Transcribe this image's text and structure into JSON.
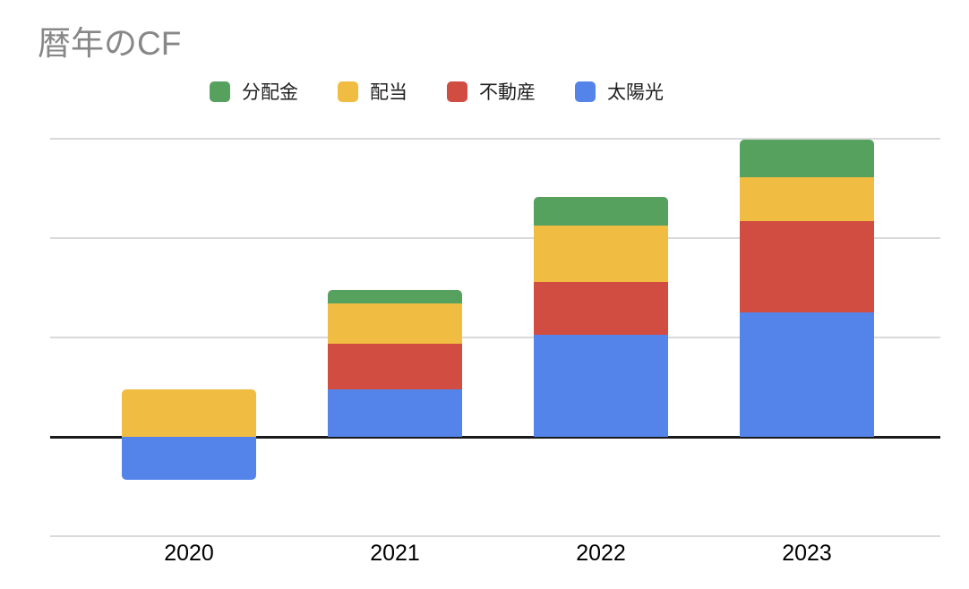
{
  "title": "暦年のCF",
  "legend": {
    "items": [
      {
        "label": "分配金",
        "color": "#57A15F"
      },
      {
        "label": "配当",
        "color": "#F0BC42"
      },
      {
        "label": "不動産",
        "color": "#D14D41"
      },
      {
        "label": "太陽光",
        "color": "#5484EA"
      }
    ]
  },
  "chart_data": {
    "type": "bar",
    "stacked": true,
    "title": "暦年のCF",
    "categories": [
      "2020",
      "2021",
      "2022",
      "2023"
    ],
    "series": [
      {
        "name": "太陽光",
        "color": "#5484EA",
        "values": [
          -0.43,
          0.48,
          1.03,
          1.25
        ]
      },
      {
        "name": "不動産",
        "color": "#D14D41",
        "values": [
          0,
          0.46,
          0.53,
          0.92
        ]
      },
      {
        "name": "配当",
        "color": "#F0BC42",
        "values": [
          0.48,
          0.4,
          0.57,
          0.44
        ]
      },
      {
        "name": "分配金",
        "color": "#57A15F",
        "values": [
          0,
          0.14,
          0.28,
          0.38
        ]
      }
    ],
    "xlabel": "",
    "ylabel": "",
    "ylim": [
      -1,
      3
    ],
    "y_gridline_units": [
      3,
      2,
      1,
      0,
      -1
    ],
    "y_tick_labels_visible": false,
    "units_note": "No numeric y-axis labels visible; values estimated in gridline units (1 unit = one gridline interval).",
    "grid": true,
    "legend_position": "top",
    "colors": {
      "grid": "#d9d9d9",
      "zero_line": "#1a1a1a",
      "title_text": "#878787",
      "label_text": "#000000"
    }
  }
}
